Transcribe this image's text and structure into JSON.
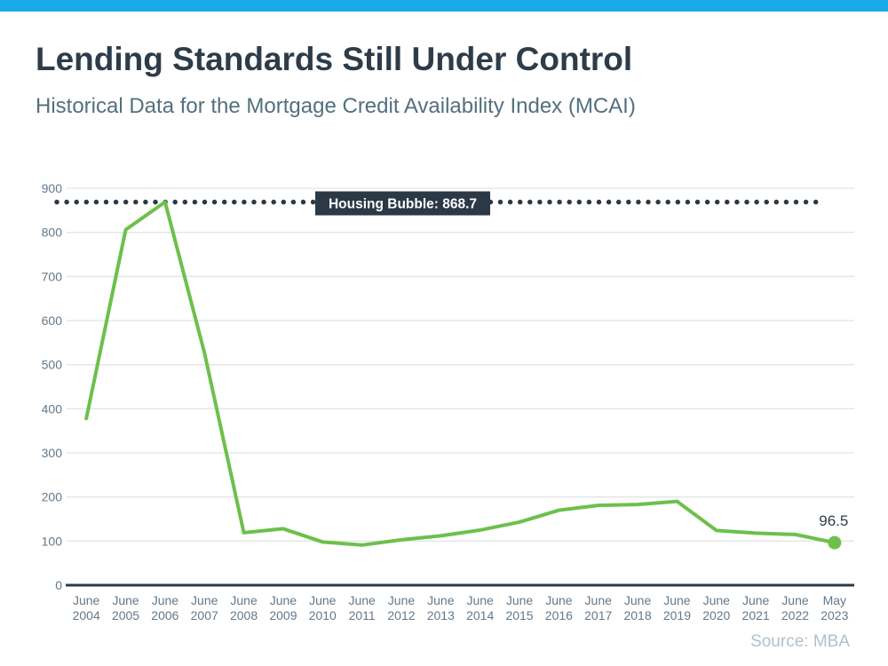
{
  "header": {
    "title": "Lending Standards Still Under Control",
    "subtitle": "Historical Data for the Mortgage Credit Availability Index (MCAI)"
  },
  "footer": {
    "source": "Source: MBA"
  },
  "colors": {
    "accent_bar": "#18abe9",
    "title": "#2e3c49",
    "subtitle": "#53707e",
    "axis_text": "#64788a",
    "grid": "#e4e4e4",
    "axis_line": "#2b3947",
    "line": "#6cc04b",
    "reference": "#2b3947",
    "reference_text": "#ffffff",
    "end_label": "#2e3c49",
    "source": "#b3c0ca"
  },
  "chart_data": {
    "type": "line",
    "title": "Lending Standards Still Under Control",
    "subtitle": "Historical Data for the Mortgage Credit Availability Index (MCAI)",
    "categories": [
      {
        "month": "June",
        "year": "2004"
      },
      {
        "month": "June",
        "year": "2005"
      },
      {
        "month": "June",
        "year": "2006"
      },
      {
        "month": "June",
        "year": "2007"
      },
      {
        "month": "June",
        "year": "2008"
      },
      {
        "month": "June",
        "year": "2009"
      },
      {
        "month": "June",
        "year": "2010"
      },
      {
        "month": "June",
        "year": "2011"
      },
      {
        "month": "June",
        "year": "2012"
      },
      {
        "month": "June",
        "year": "2013"
      },
      {
        "month": "June",
        "year": "2014"
      },
      {
        "month": "June",
        "year": "2015"
      },
      {
        "month": "June",
        "year": "2016"
      },
      {
        "month": "June",
        "year": "2017"
      },
      {
        "month": "June",
        "year": "2018"
      },
      {
        "month": "June",
        "year": "2019"
      },
      {
        "month": "June",
        "year": "2020"
      },
      {
        "month": "June",
        "year": "2021"
      },
      {
        "month": "June",
        "year": "2022"
      },
      {
        "month": "May",
        "year": "2023"
      }
    ],
    "values": [
      378,
      806,
      868.7,
      527,
      119,
      128,
      98,
      91,
      103,
      112,
      125,
      143,
      170,
      181,
      183,
      190,
      124,
      118,
      115,
      96.5
    ],
    "ylim": [
      0,
      900
    ],
    "ytick_step": 100,
    "grid": true,
    "legend": false,
    "reference_line": {
      "value": 868.7,
      "label": "Housing Bubble: 868.7"
    },
    "end_label": "96.5",
    "source": "Source: MBA"
  }
}
